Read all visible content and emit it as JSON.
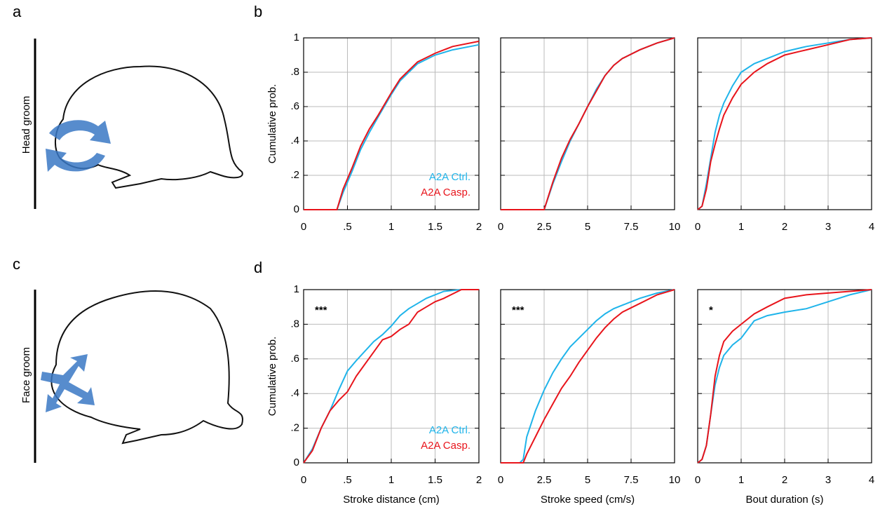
{
  "panel_labels": [
    "a",
    "b",
    "c",
    "d"
  ],
  "side_labels": [
    "Head groom",
    "Face groom"
  ],
  "chart_data": [
    {
      "type": "line",
      "xlim": [
        0,
        2
      ],
      "ylim": [
        0,
        1
      ],
      "xticks": [
        0,
        {
          "value": 0.5,
          "label": ".5"
        },
        1,
        1.5,
        2
      ],
      "yticks": [
        0,
        {
          "value": 0.2,
          "label": ".2"
        },
        {
          "value": 0.4,
          "label": ".4"
        },
        {
          "value": 0.6,
          "label": ".6"
        },
        {
          "value": 0.8,
          "label": ".8"
        },
        1
      ],
      "ylabel": "Cumulative prob.",
      "grid": true,
      "legend": "lower right",
      "x": [
        0,
        0.38,
        0.45,
        0.55,
        0.65,
        0.75,
        0.85,
        1.0,
        1.1,
        1.2,
        1.3,
        1.5,
        1.7,
        2.0
      ],
      "series": [
        {
          "name": "A2A Ctrl.",
          "color": "#1fb4ea",
          "values": [
            0,
            0,
            0.1,
            0.22,
            0.35,
            0.45,
            0.54,
            0.67,
            0.75,
            0.8,
            0.85,
            0.9,
            0.93,
            0.96
          ]
        },
        {
          "name": "A2A Casp.",
          "color": "#e8141b",
          "values": [
            0,
            0,
            0.12,
            0.24,
            0.37,
            0.47,
            0.55,
            0.68,
            0.76,
            0.81,
            0.86,
            0.91,
            0.95,
            0.98
          ]
        }
      ]
    },
    {
      "type": "line",
      "xlim": [
        0,
        10
      ],
      "ylim": [
        0,
        1
      ],
      "xticks": [
        0,
        2.5,
        5,
        7.5,
        10
      ],
      "yticks": [
        0,
        0.2,
        0.4,
        0.6,
        0.8,
        1
      ],
      "grid": true,
      "x": [
        0,
        2.4,
        2.5,
        3,
        3.5,
        4,
        4.5,
        5,
        5.5,
        6,
        6.5,
        7,
        8,
        9,
        10
      ],
      "series": [
        {
          "color": "#1fb4ea",
          "values": [
            0,
            0,
            0,
            0.15,
            0.28,
            0.4,
            0.5,
            0.6,
            0.7,
            0.78,
            0.84,
            0.88,
            0.93,
            0.97,
            1
          ]
        },
        {
          "color": "#e8141b",
          "values": [
            0,
            0,
            0,
            0.16,
            0.3,
            0.41,
            0.5,
            0.6,
            0.69,
            0.78,
            0.84,
            0.88,
            0.93,
            0.97,
            1
          ]
        }
      ]
    },
    {
      "type": "line",
      "xlim": [
        0,
        4
      ],
      "ylim": [
        0,
        1
      ],
      "xticks": [
        0,
        1,
        2,
        3,
        4
      ],
      "yticks": [
        0,
        0.2,
        0.4,
        0.6,
        0.8,
        1
      ],
      "grid": true,
      "x": [
        0,
        0.1,
        0.2,
        0.3,
        0.4,
        0.5,
        0.6,
        0.8,
        1,
        1.3,
        1.6,
        2,
        2.5,
        3,
        3.5,
        4
      ],
      "series": [
        {
          "color": "#1fb4ea",
          "values": [
            0,
            0.02,
            0.15,
            0.3,
            0.45,
            0.55,
            0.62,
            0.72,
            0.8,
            0.85,
            0.88,
            0.92,
            0.95,
            0.97,
            0.99,
            1
          ]
        },
        {
          "color": "#e8141b",
          "values": [
            0,
            0.02,
            0.12,
            0.28,
            0.38,
            0.47,
            0.55,
            0.65,
            0.73,
            0.8,
            0.85,
            0.9,
            0.93,
            0.96,
            0.99,
            1
          ]
        }
      ]
    },
    {
      "type": "line",
      "xlim": [
        0,
        2
      ],
      "ylim": [
        0,
        1
      ],
      "xticks": [
        0,
        {
          "value": 0.5,
          "label": ".5"
        },
        1,
        1.5,
        2
      ],
      "yticks": [
        0,
        {
          "value": 0.2,
          "label": ".2"
        },
        {
          "value": 0.4,
          "label": ".4"
        },
        {
          "value": 0.6,
          "label": ".6"
        },
        {
          "value": 0.8,
          "label": ".8"
        },
        1
      ],
      "ylabel": "Cumulative prob.",
      "xlabel": "Stroke distance (cm)",
      "annotation": "***",
      "grid": true,
      "legend": "lower right",
      "x": [
        0,
        0.1,
        0.2,
        0.3,
        0.4,
        0.5,
        0.6,
        0.8,
        0.9,
        1,
        1.1,
        1.2,
        1.3,
        1.4,
        1.5,
        1.6,
        1.8,
        2
      ],
      "series": [
        {
          "name": "A2A Ctrl.",
          "color": "#1fb4ea",
          "values": [
            0,
            0.08,
            0.2,
            0.3,
            0.42,
            0.53,
            0.59,
            0.7,
            0.74,
            0.79,
            0.85,
            0.89,
            0.92,
            0.95,
            0.97,
            0.99,
            1,
            1
          ]
        },
        {
          "name": "A2A Casp.",
          "color": "#e8141b",
          "values": [
            0,
            0.07,
            0.2,
            0.3,
            0.36,
            0.41,
            0.5,
            0.64,
            0.71,
            0.73,
            0.77,
            0.8,
            0.87,
            0.9,
            0.93,
            0.95,
            1,
            1
          ]
        }
      ]
    },
    {
      "type": "line",
      "xlim": [
        0,
        10
      ],
      "ylim": [
        0,
        1
      ],
      "xticks": [
        0,
        2.5,
        5,
        7.5,
        10
      ],
      "yticks": [
        0,
        0.2,
        0.4,
        0.6,
        0.8,
        1
      ],
      "xlabel": "Stroke speed (cm/s)",
      "annotation": "***",
      "grid": true,
      "x": [
        0,
        1.1,
        1.3,
        1.5,
        2,
        2.5,
        3,
        3.5,
        4,
        4.5,
        5,
        5.5,
        6,
        6.5,
        7,
        8,
        9,
        10
      ],
      "series": [
        {
          "color": "#1fb4ea",
          "values": [
            0,
            0,
            0.02,
            0.15,
            0.3,
            0.42,
            0.52,
            0.6,
            0.67,
            0.72,
            0.77,
            0.82,
            0.86,
            0.89,
            0.91,
            0.95,
            0.98,
            1
          ]
        },
        {
          "color": "#e8141b",
          "values": [
            0,
            0,
            0,
            0.05,
            0.15,
            0.25,
            0.34,
            0.43,
            0.5,
            0.58,
            0.65,
            0.72,
            0.78,
            0.83,
            0.87,
            0.92,
            0.97,
            1
          ]
        }
      ]
    },
    {
      "type": "line",
      "xlim": [
        0,
        4
      ],
      "ylim": [
        0,
        1
      ],
      "xticks": [
        0,
        1,
        2,
        3,
        4
      ],
      "yticks": [
        0,
        0.2,
        0.4,
        0.6,
        0.8,
        1
      ],
      "xlabel": "Bout duration (s)",
      "annotation": "*",
      "grid": true,
      "x": [
        0,
        0.1,
        0.2,
        0.3,
        0.4,
        0.5,
        0.6,
        0.8,
        1,
        1.3,
        1.6,
        2,
        2.5,
        3,
        3.5,
        4
      ],
      "series": [
        {
          "color": "#1fb4ea",
          "values": [
            0,
            0.02,
            0.1,
            0.28,
            0.45,
            0.55,
            0.62,
            0.68,
            0.72,
            0.82,
            0.85,
            0.87,
            0.89,
            0.93,
            0.97,
            1
          ]
        },
        {
          "color": "#e8141b",
          "values": [
            0,
            0.02,
            0.1,
            0.28,
            0.5,
            0.62,
            0.7,
            0.76,
            0.8,
            0.86,
            0.9,
            0.95,
            0.97,
            0.98,
            0.99,
            1
          ]
        }
      ]
    }
  ]
}
